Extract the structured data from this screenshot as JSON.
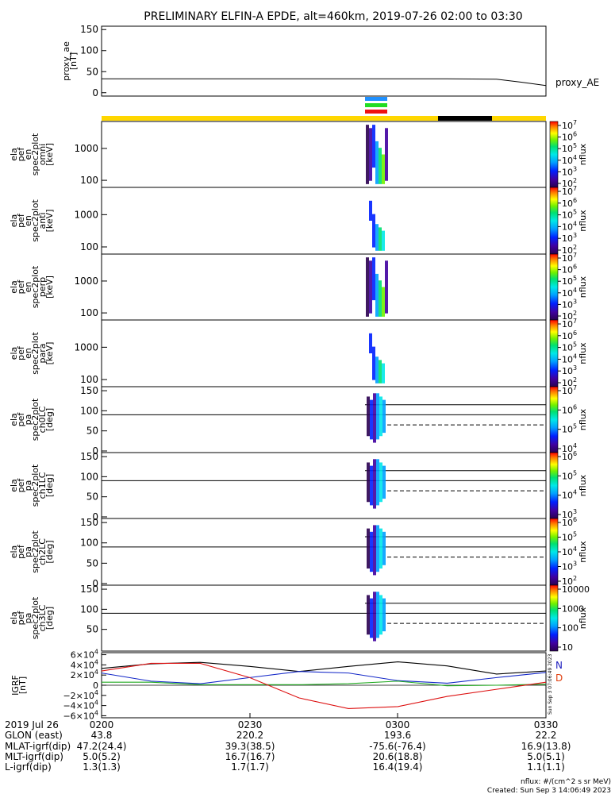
{
  "title": "PRELIMINARY ELFIN-A EPDE, alt=460km, 2019-07-26 02:00 to 03:30",
  "proxy_ae": {
    "ylabel": [
      "proxy_ae",
      "[nT]"
    ],
    "yticks": [
      "0",
      "50",
      "100",
      "150"
    ],
    "legend": "proxy_AE"
  },
  "spec_panels": [
    {
      "ylabel": [
        "ela",
        "pef",
        "en",
        "spec2plot",
        "omni",
        "[keV]"
      ],
      "yticks": [
        "100",
        "1000"
      ]
    },
    {
      "ylabel": [
        "ela",
        "pef",
        "en",
        "spec2plot",
        "anti",
        "[keV]"
      ],
      "yticks": [
        "100",
        "1000"
      ]
    },
    {
      "ylabel": [
        "ela",
        "pef",
        "en",
        "spec2plot",
        "perp",
        "[keV]"
      ],
      "yticks": [
        "100",
        "1000"
      ]
    },
    {
      "ylabel": [
        "ela",
        "pef",
        "en",
        "spec2plot",
        "para",
        "[keV]"
      ],
      "yticks": [
        "100",
        "1000"
      ]
    }
  ],
  "pa_panels": [
    {
      "ylabel": [
        "ela",
        "pef",
        "pa",
        "spec2plot",
        "ch0LC",
        "[deg]"
      ],
      "yticks": [
        "0",
        "50",
        "100",
        "150"
      ]
    },
    {
      "ylabel": [
        "ela",
        "pef",
        "pa",
        "spec2plot",
        "ch1LC",
        "[deg]"
      ],
      "yticks": [
        "0",
        "50",
        "100",
        "150"
      ]
    },
    {
      "ylabel": [
        "ela",
        "pef",
        "pa",
        "spec2plot",
        "ch2LC",
        "[deg]"
      ],
      "yticks": [
        "0",
        "50",
        "100",
        "150"
      ]
    },
    {
      "ylabel": [
        "ela",
        "pef",
        "pa",
        "spec2plot",
        "ch3LC",
        "[deg]"
      ],
      "yticks": [
        "50",
        "100",
        "150"
      ]
    }
  ],
  "colorbars": [
    {
      "label": "nflux",
      "ticks": [
        {
          "b": "10",
          "e": "7"
        },
        {
          "b": "10",
          "e": "6"
        },
        {
          "b": "10",
          "e": "5"
        },
        {
          "b": "10",
          "e": "4"
        },
        {
          "b": "10",
          "e": "3"
        },
        {
          "b": "10",
          "e": "2"
        }
      ]
    },
    {
      "label": "nflux",
      "ticks": [
        {
          "b": "10",
          "e": "7"
        },
        {
          "b": "10",
          "e": "6"
        },
        {
          "b": "10",
          "e": "5"
        },
        {
          "b": "10",
          "e": "4"
        },
        {
          "b": "10",
          "e": "3"
        },
        {
          "b": "10",
          "e": "2"
        }
      ]
    },
    {
      "label": "nflux",
      "ticks": [
        {
          "b": "10",
          "e": "7"
        },
        {
          "b": "10",
          "e": "6"
        },
        {
          "b": "10",
          "e": "5"
        },
        {
          "b": "10",
          "e": "4"
        },
        {
          "b": "10",
          "e": "3"
        },
        {
          "b": "10",
          "e": "2"
        }
      ]
    },
    {
      "label": "nflux",
      "ticks": [
        {
          "b": "10",
          "e": "7"
        },
        {
          "b": "10",
          "e": "6"
        },
        {
          "b": "10",
          "e": "5"
        },
        {
          "b": "10",
          "e": "4"
        },
        {
          "b": "10",
          "e": "3"
        },
        {
          "b": "10",
          "e": "2"
        }
      ]
    },
    {
      "label": "nflux",
      "ticks": [
        {
          "b": "10",
          "e": "7"
        },
        {
          "b": "10",
          "e": "6"
        },
        {
          "b": "10",
          "e": "5"
        },
        {
          "b": "10",
          "e": "4"
        }
      ]
    },
    {
      "label": "nflux",
      "ticks": [
        {
          "b": "10",
          "e": "6"
        },
        {
          "b": "10",
          "e": "5"
        },
        {
          "b": "10",
          "e": "4"
        },
        {
          "b": "10",
          "e": "3"
        }
      ]
    },
    {
      "label": "nflux",
      "ticks": [
        {
          "b": "10",
          "e": "6"
        },
        {
          "b": "10",
          "e": "5"
        },
        {
          "b": "10",
          "e": "4"
        },
        {
          "b": "10",
          "e": "3"
        },
        {
          "b": "10",
          "e": "2"
        }
      ]
    },
    {
      "label": "nflux",
      "ticks": [
        {
          "b": "10000",
          "e": ""
        },
        {
          "b": "1000",
          "e": ""
        },
        {
          "b": "100",
          "e": ""
        },
        {
          "b": "10",
          "e": ""
        }
      ]
    }
  ],
  "igrf": {
    "ylabel": [
      "IGRF",
      "[nT]"
    ],
    "yticks": [
      {
        "b": "6×10",
        "e": "4"
      },
      {
        "b": "4×10",
        "e": "4"
      },
      {
        "b": "2×10",
        "e": "4"
      },
      {
        "b": "0",
        "e": ""
      },
      {
        "b": "−2×10",
        "e": "4"
      },
      {
        "b": "−4×10",
        "e": "4"
      },
      {
        "b": "−6×10",
        "e": "4"
      }
    ],
    "legend_n": "N",
    "legend_d": "D",
    "side_text": "Sun Sep  3 07:06:49 2023"
  },
  "time_axis": {
    "labels": [
      "2019 Jul 26",
      "GLON (east)",
      "MLAT-igrf(dip)",
      "MLT-igrf(dip)",
      "L-igrf(dip)"
    ],
    "columns": [
      {
        "time": "0200",
        "rows": [
          "43.8",
          "47.2(24.4)",
          "5.0(5.2)",
          "1.3(1.3)"
        ]
      },
      {
        "time": "0230",
        "rows": [
          "220.2",
          "39.3(38.5)",
          "16.7(16.7)",
          "1.7(1.7)"
        ]
      },
      {
        "time": "0300",
        "rows": [
          "193.6",
          "-75.6(-76.4)",
          "20.6(18.8)",
          "16.4(19.4)"
        ]
      },
      {
        "time": "0330",
        "rows": [
          "22.2",
          "16.9(13.8)",
          "5.0(5.1)",
          "1.1(1.1)"
        ]
      }
    ]
  },
  "footer": {
    "units": "nflux: #/(cm^2 s sr MeV)",
    "created": "Created: Sun Sep  3 14:06:49 2023"
  },
  "colors": {
    "orbit_bar": "#FFD700",
    "orbit_dark": "#000000",
    "sc_blue": "#1E90FF",
    "sc_green": "#22DD22",
    "sc_red": "#EE1111",
    "igrf_black": "#000000",
    "igrf_blue": "#1428C8",
    "igrf_green": "#22AA22",
    "igrf_red": "#DD1111",
    "legend_n": "#2020C0",
    "legend_d": "#E04010"
  },
  "chart_data": {
    "type": "heatmap",
    "x": [
      "0200",
      "0230",
      "0300",
      "0330"
    ],
    "proxy_ae": {
      "ylim": [
        0,
        150
      ],
      "t_min": [
        0,
        10,
        20,
        30,
        40,
        50,
        60,
        70,
        80,
        85,
        90
      ],
      "values": [
        33,
        33,
        33,
        33,
        33,
        33,
        33,
        33,
        32,
        25,
        17
      ]
    },
    "spec_energy_ylim_keV": [
      60,
      7000
    ],
    "pa_ylim_deg": [
      0,
      160
    ],
    "pa_ref_lines_deg": [
      90,
      115
    ],
    "pa_dashed_line_deg": 65,
    "igrf": {
      "ylim": [
        -60000,
        60000
      ],
      "t_min": [
        0,
        10,
        20,
        30,
        40,
        50,
        60,
        70,
        80,
        90
      ],
      "black": [
        33000,
        42000,
        45000,
        37000,
        27000,
        37000,
        46000,
        38000,
        22000,
        28000
      ],
      "blue": [
        24000,
        8000,
        3000,
        15000,
        27000,
        24000,
        9000,
        4000,
        15000,
        25000
      ],
      "green": [
        6000,
        6000,
        1000,
        1000,
        1000,
        3000,
        8000,
        -1000,
        0,
        2000
      ],
      "red": [
        28000,
        43000,
        43000,
        15000,
        -25000,
        -46000,
        -42000,
        -22000,
        -8000,
        6000
      ]
    },
    "colorbar_range_log10": [
      1,
      7
    ]
  }
}
